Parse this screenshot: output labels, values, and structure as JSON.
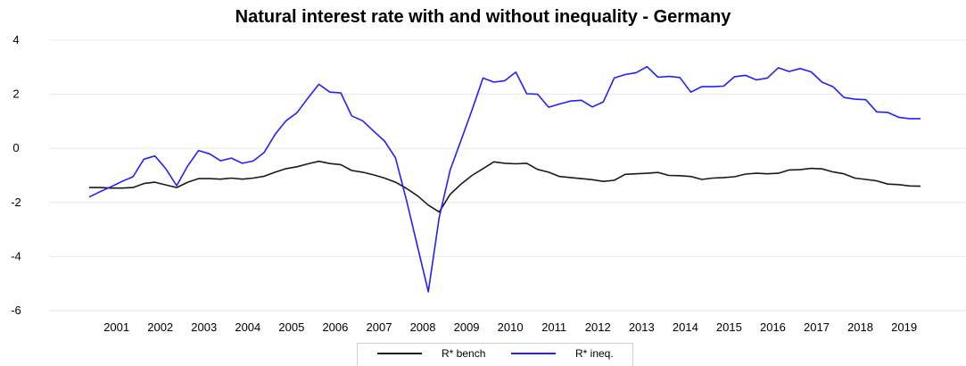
{
  "chart_data": {
    "type": "line",
    "title": "Natural interest rate with and without inequality - Germany",
    "xlabel": "",
    "ylabel": "",
    "ylim": [
      -6,
      4
    ],
    "yticks": [
      "4",
      "2",
      "0",
      "-2",
      "-4",
      "-6"
    ],
    "xticks": [
      "2001",
      "2002",
      "2003",
      "2004",
      "2005",
      "2006",
      "2007",
      "2008",
      "2009",
      "2010",
      "2011",
      "2012",
      "2013",
      "2014",
      "2015",
      "2016",
      "2017",
      "2018",
      "2019"
    ],
    "grid": "horizontal",
    "legend_position": "bottom-center",
    "x": [
      "2000Q4",
      "2001Q1",
      "2001Q2",
      "2001Q3",
      "2001Q4",
      "2002Q1",
      "2002Q2",
      "2002Q3",
      "2002Q4",
      "2003Q1",
      "2003Q2",
      "2003Q3",
      "2003Q4",
      "2004Q1",
      "2004Q2",
      "2004Q3",
      "2004Q4",
      "2005Q1",
      "2005Q2",
      "2005Q3",
      "2005Q4",
      "2006Q1",
      "2006Q2",
      "2006Q3",
      "2006Q4",
      "2007Q1",
      "2007Q2",
      "2007Q3",
      "2007Q4",
      "2008Q1",
      "2008Q2",
      "2008Q3",
      "2008Q4",
      "2009Q1",
      "2009Q2",
      "2009Q3",
      "2009Q4",
      "2010Q1",
      "2010Q2",
      "2010Q3",
      "2010Q4",
      "2011Q1",
      "2011Q2",
      "2011Q3",
      "2011Q4",
      "2012Q1",
      "2012Q2",
      "2012Q3",
      "2012Q4",
      "2013Q1",
      "2013Q2",
      "2013Q3",
      "2013Q4",
      "2014Q1",
      "2014Q2",
      "2014Q3",
      "2014Q4",
      "2015Q1",
      "2015Q2",
      "2015Q3",
      "2015Q4",
      "2016Q1",
      "2016Q2",
      "2016Q3",
      "2016Q4",
      "2017Q1",
      "2017Q2",
      "2017Q3",
      "2017Q4",
      "2018Q1",
      "2018Q2",
      "2018Q3",
      "2018Q4",
      "2019Q1",
      "2019Q2",
      "2019Q3",
      "2019Q4"
    ],
    "series": [
      {
        "name": "R* bench",
        "color": "#1a1a1a",
        "values": [
          -1.45,
          -1.45,
          -1.47,
          -1.47,
          -1.45,
          -1.3,
          -1.25,
          -1.35,
          -1.45,
          -1.25,
          -1.12,
          -1.12,
          -1.14,
          -1.1,
          -1.14,
          -1.1,
          -1.03,
          -0.88,
          -0.75,
          -0.68,
          -0.57,
          -0.48,
          -0.56,
          -0.6,
          -0.82,
          -0.88,
          -0.98,
          -1.1,
          -1.25,
          -1.48,
          -1.75,
          -2.1,
          -2.35,
          -1.7,
          -1.32,
          -1.0,
          -0.75,
          -0.5,
          -0.55,
          -0.57,
          -0.55,
          -0.78,
          -0.88,
          -1.04,
          -1.08,
          -1.12,
          -1.16,
          -1.22,
          -1.18,
          -0.96,
          -0.94,
          -0.92,
          -0.89,
          -1.0,
          -1.01,
          -1.04,
          -1.15,
          -1.1,
          -1.08,
          -1.05,
          -0.95,
          -0.92,
          -0.94,
          -0.92,
          -0.8,
          -0.79,
          -0.74,
          -0.76,
          -0.87,
          -0.94,
          -1.1,
          -1.15,
          -1.2,
          -1.32,
          -1.34,
          -1.39,
          -1.4
        ]
      },
      {
        "name": "R* ineq.",
        "color": "#2020ff",
        "values": [
          -1.8,
          -1.6,
          -1.42,
          -1.22,
          -1.05,
          -0.4,
          -0.28,
          -0.75,
          -1.38,
          -0.65,
          -0.08,
          -0.2,
          -0.46,
          -0.36,
          -0.55,
          -0.47,
          -0.15,
          0.52,
          1.02,
          1.32,
          1.86,
          2.37,
          2.08,
          2.05,
          1.2,
          1.02,
          0.64,
          0.27,
          -0.35,
          -1.9,
          -3.6,
          -5.3,
          -2.55,
          -0.8,
          0.3,
          1.42,
          2.6,
          2.45,
          2.5,
          2.82,
          2.02,
          2.0,
          1.52,
          1.64,
          1.75,
          1.78,
          1.53,
          1.72,
          2.6,
          2.73,
          2.8,
          3.02,
          2.63,
          2.66,
          2.62,
          2.08,
          2.28,
          2.28,
          2.3,
          2.65,
          2.7,
          2.53,
          2.6,
          2.98,
          2.84,
          2.95,
          2.83,
          2.45,
          2.28,
          1.88,
          1.82,
          1.8,
          1.35,
          1.33,
          1.15,
          1.1,
          1.1
        ]
      }
    ]
  }
}
